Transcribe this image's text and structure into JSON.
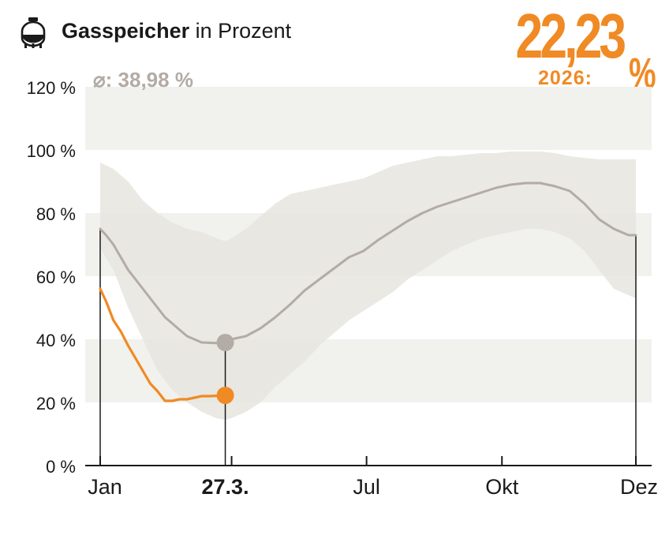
{
  "header": {
    "title_bold": "Gasspeicher",
    "title_rest": "in Prozent",
    "current_value": "22,23",
    "current_label": "2026:",
    "current_unit": "%",
    "average_text": "⌀: 38,98 %"
  },
  "icons": {
    "title_icon": "gas-tank-icon"
  },
  "colors": {
    "accent": "#f08a24",
    "average_line": "#b3aba5",
    "range_band": "#e6e5df",
    "stripe": "#f1f1ed",
    "axis": "#1a1a1a"
  },
  "chart_data": {
    "type": "line",
    "xlabel": "",
    "ylabel": "",
    "ylim": [
      0,
      120
    ],
    "yticks": [
      0,
      20,
      40,
      60,
      80,
      100,
      120
    ],
    "ytick_labels": [
      "0 %",
      "20 %",
      "40 %",
      "60 %",
      "80 %",
      "100 %",
      "120 %"
    ],
    "xlim": [
      1,
      365
    ],
    "xticks": [
      {
        "day": 1,
        "label": "Jan",
        "bold": false
      },
      {
        "day": 86,
        "label": "27.3.",
        "bold": true
      },
      {
        "day": 182,
        "label": "Jul",
        "bold": false
      },
      {
        "day": 274,
        "label": "Okt",
        "bold": false
      },
      {
        "day": 365,
        "label": "Dez",
        "bold": false
      }
    ],
    "grid": false,
    "band_stripes": [
      [
        20,
        40
      ],
      [
        60,
        80
      ],
      [
        100,
        120
      ]
    ],
    "range_band": {
      "days": [
        1,
        10,
        20,
        30,
        40,
        50,
        60,
        70,
        80,
        86,
        90,
        100,
        110,
        120,
        130,
        140,
        150,
        160,
        170,
        180,
        190,
        200,
        210,
        220,
        230,
        240,
        250,
        260,
        270,
        280,
        290,
        300,
        310,
        320,
        330,
        340,
        350,
        360,
        365
      ],
      "upper": [
        96,
        94,
        90,
        84,
        80,
        77,
        75,
        74,
        72,
        71,
        72,
        75,
        79,
        83,
        86,
        87,
        88,
        89,
        90,
        91,
        93,
        95,
        96,
        97,
        98,
        98,
        98.5,
        99,
        99,
        99.5,
        99.5,
        99.5,
        99,
        98,
        97.5,
        97,
        97,
        97,
        97
      ],
      "lower": [
        69,
        62,
        50,
        40,
        30,
        24,
        20,
        17,
        15,
        14.5,
        15,
        17,
        20,
        25,
        29,
        33,
        38,
        42,
        46,
        49,
        52,
        55,
        59,
        62,
        65,
        68,
        70,
        72,
        73,
        74,
        75,
        75,
        74,
        72,
        68,
        62,
        56,
        54,
        53
      ]
    },
    "series": [
      {
        "name": "",
        "role": "average",
        "days": [
          1,
          5,
          10,
          15,
          20,
          25,
          30,
          35,
          40,
          45,
          50,
          55,
          60,
          65,
          70,
          75,
          80,
          86,
          90,
          95,
          100,
          110,
          120,
          130,
          140,
          150,
          160,
          170,
          180,
          190,
          200,
          210,
          220,
          230,
          240,
          250,
          260,
          270,
          280,
          290,
          300,
          305,
          310,
          320,
          330,
          340,
          350,
          360,
          365
        ],
        "values": [
          75,
          73,
          70,
          66,
          62,
          59,
          56,
          53,
          50,
          47,
          45,
          43,
          41,
          40,
          39,
          38.9,
          38.8,
          38.98,
          40,
          40.5,
          41,
          43.5,
          47,
          51,
          55.5,
          59,
          62.5,
          66,
          68,
          71.5,
          74.5,
          77.5,
          80,
          82,
          83.5,
          85,
          86.5,
          88,
          89,
          89.5,
          89.5,
          89,
          88.5,
          87,
          83,
          78,
          75,
          73,
          73
        ]
      },
      {
        "name": "2026",
        "role": "current",
        "days": [
          1,
          5,
          10,
          15,
          20,
          25,
          30,
          35,
          40,
          45,
          50,
          55,
          60,
          65,
          70,
          75,
          80,
          86
        ],
        "values": [
          56,
          52,
          46,
          42.5,
          38,
          34,
          30,
          26,
          23.5,
          20.5,
          20.5,
          21,
          21,
          21.5,
          22,
          22,
          22.1,
          22.23
        ]
      }
    ],
    "markers": [
      {
        "series_role": "average",
        "day": 86,
        "value": 38.98
      },
      {
        "series_role": "current",
        "day": 86,
        "value": 22.23
      }
    ],
    "vertical_lines": [
      {
        "day": 1,
        "top": 75
      },
      {
        "day": 86,
        "top": 38.98
      },
      {
        "day": 365,
        "top": 73
      }
    ]
  }
}
